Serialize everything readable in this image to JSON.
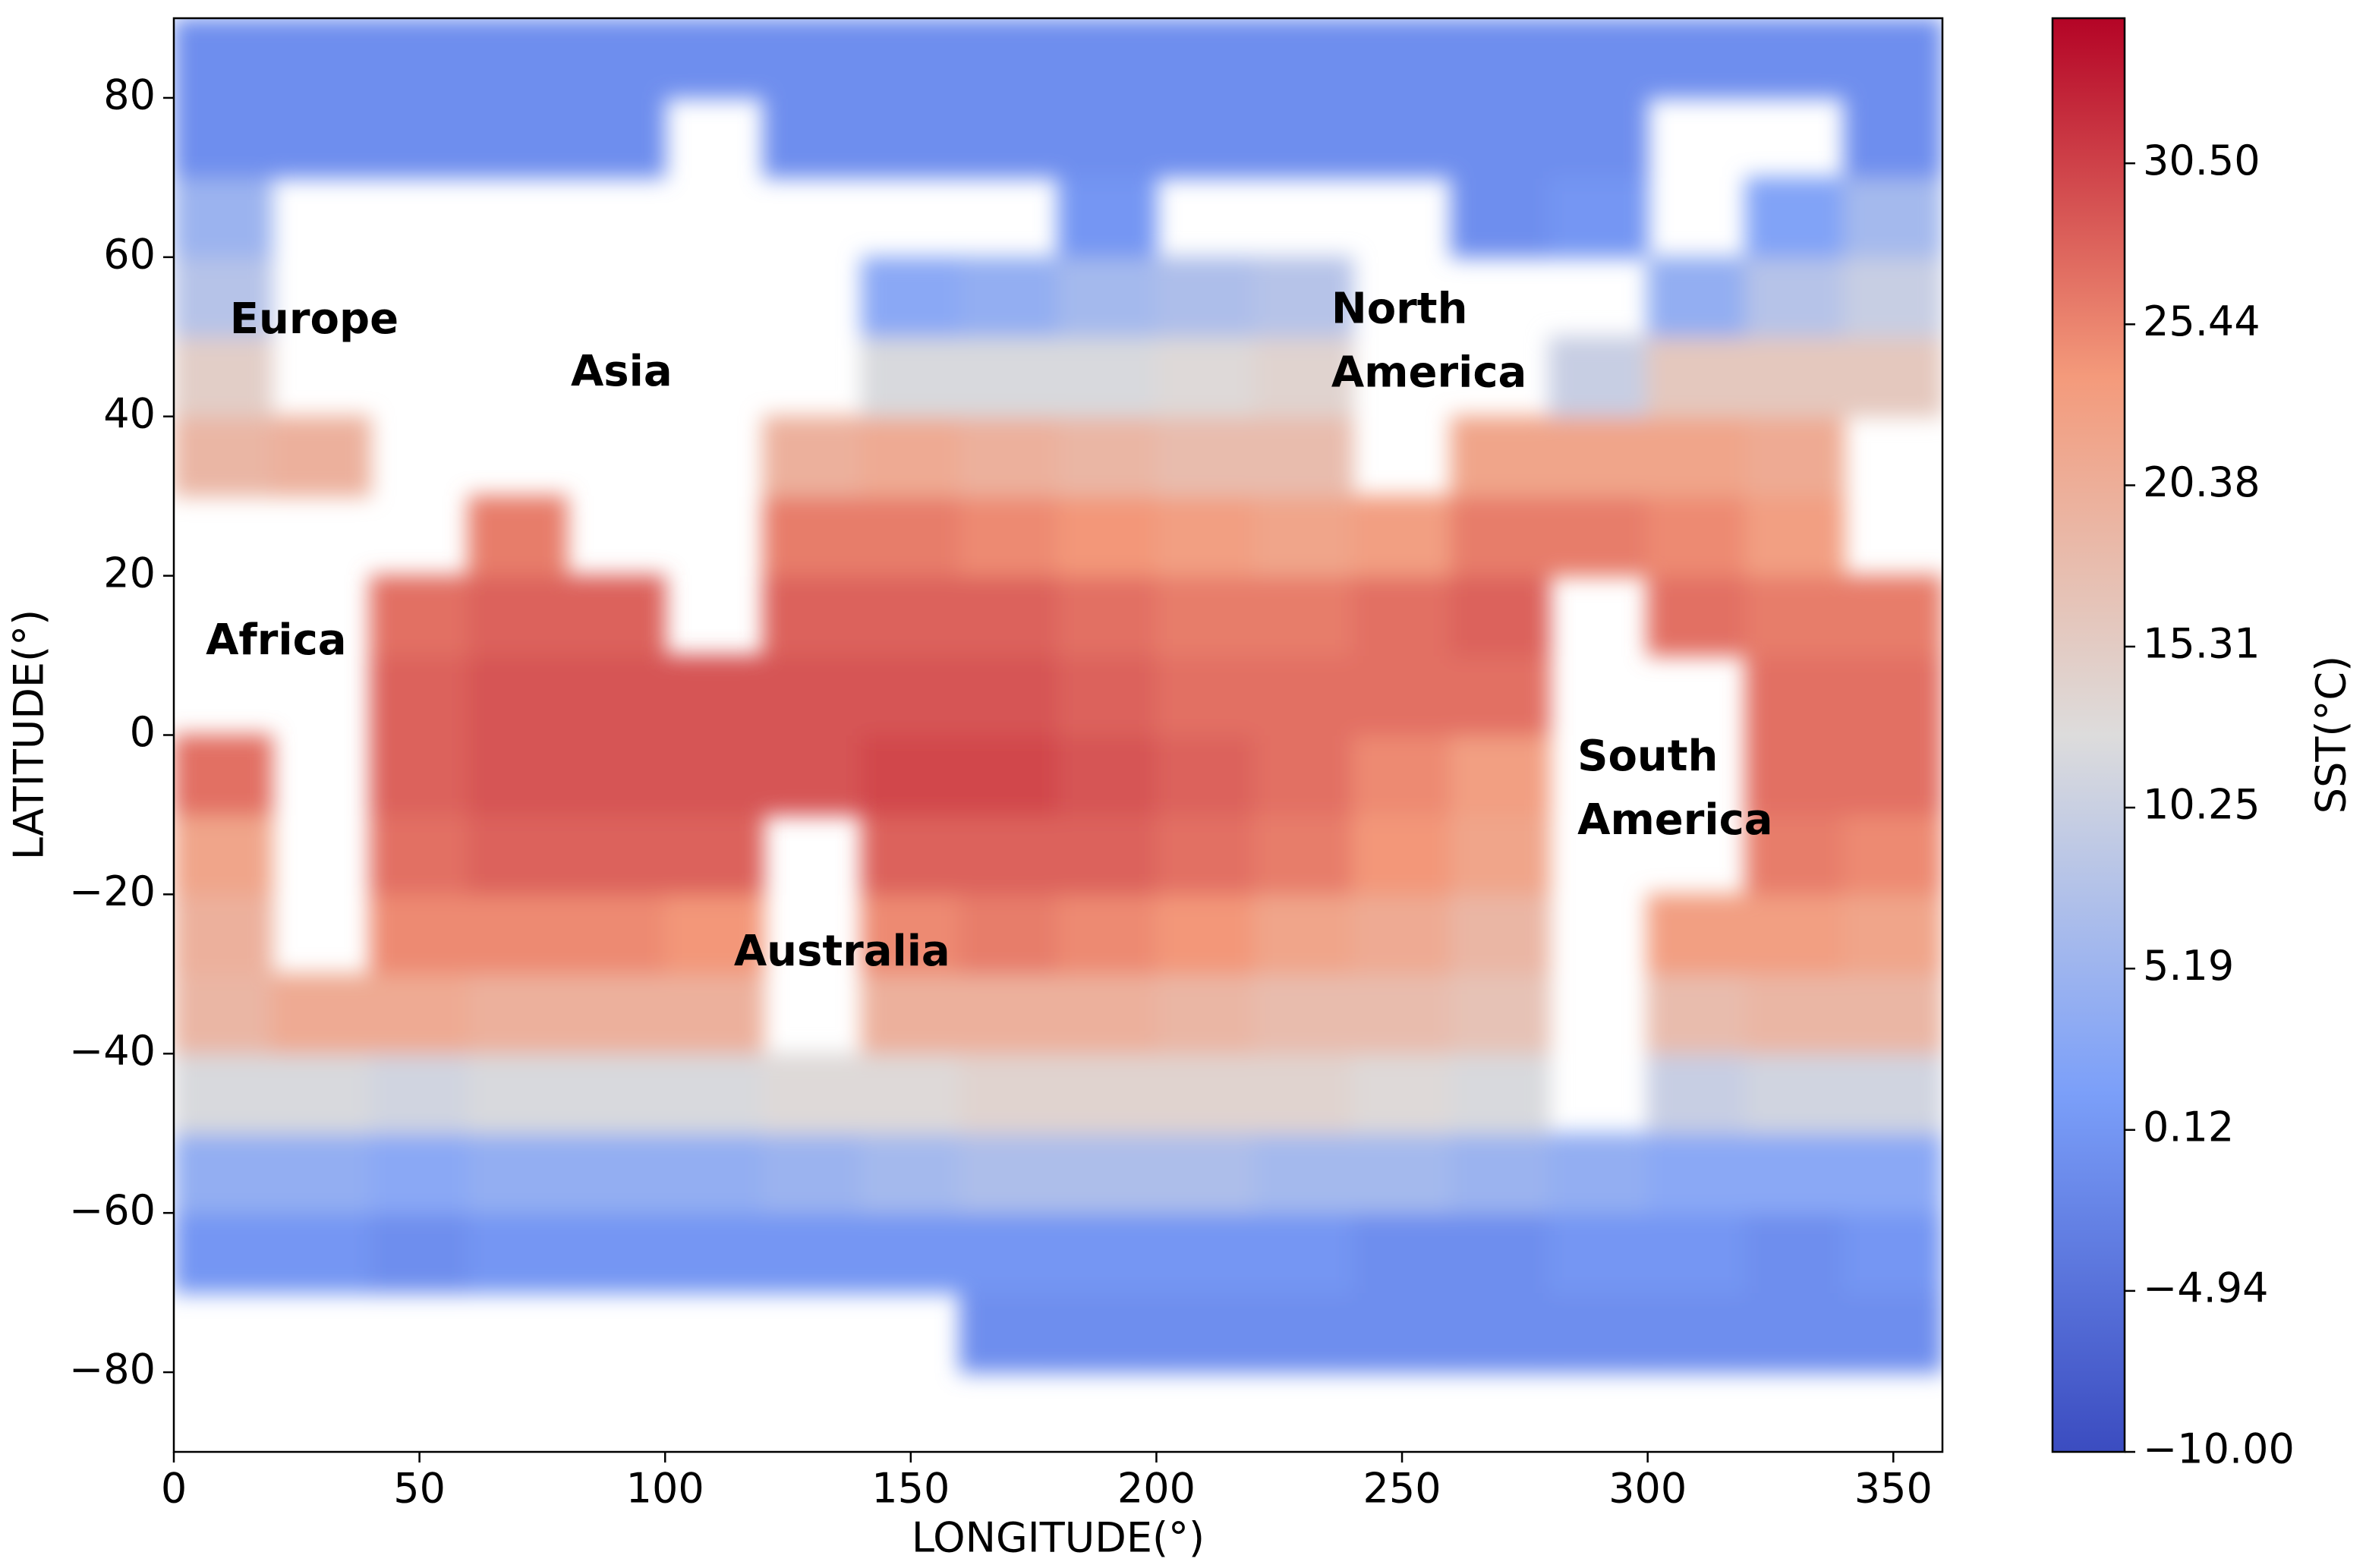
{
  "chart_data": {
    "type": "heatmap",
    "x_label": "LONGITUDE(°)",
    "y_label": "LATITUDE(°)",
    "colorbar_label": "SST(°C)",
    "xlim": [
      0,
      360
    ],
    "ylim": [
      -90,
      90
    ],
    "xticks": [
      0,
      50,
      100,
      150,
      200,
      250,
      300,
      350
    ],
    "yticks": [
      {
        "value": -80,
        "label": "−80"
      },
      {
        "value": -60,
        "label": "−60"
      },
      {
        "value": -40,
        "label": "−40"
      },
      {
        "value": -20,
        "label": "−20"
      },
      0,
      20,
      40,
      60,
      80
    ],
    "clim": [
      -10,
      35.06
    ],
    "cticks": [
      {
        "value": -10,
        "label": "−10.00"
      },
      {
        "value": -4.94,
        "label": "−4.94"
      },
      {
        "value": 0.12,
        "label": "0.12"
      },
      {
        "value": 5.19,
        "label": "5.19"
      },
      {
        "value": 10.25,
        "label": "10.25"
      },
      {
        "value": 15.31,
        "label": "15.31"
      },
      {
        "value": 20.38,
        "label": "20.38"
      },
      {
        "value": 25.44,
        "label": "25.44"
      },
      {
        "value": 30.5,
        "label": "30.50"
      }
    ],
    "colormap": [
      "#3b4cc0",
      "#7b9ff9",
      "#dddcdc",
      "#f49a7b",
      "#b40426"
    ],
    "x": [
      10,
      30,
      50,
      70,
      90,
      110,
      130,
      150,
      170,
      190,
      210,
      230,
      250,
      270,
      290,
      310,
      330,
      350
    ],
    "y": [
      -85,
      -75,
      -65,
      -55,
      -45,
      -35,
      -25,
      -15,
      -5,
      5,
      15,
      25,
      35,
      45,
      55,
      65,
      75,
      85
    ],
    "z": [
      [
        null,
        null,
        null,
        null,
        null,
        null,
        null,
        null,
        null,
        null,
        null,
        null,
        null,
        null,
        null,
        null,
        null,
        null
      ],
      [
        null,
        null,
        null,
        null,
        null,
        null,
        null,
        null,
        -1,
        -1,
        -1,
        -1,
        -1,
        -1,
        -1,
        -1,
        -1,
        -1
      ],
      [
        0,
        0,
        -1,
        0,
        0,
        0,
        0,
        0,
        0,
        0,
        0,
        0,
        -1,
        -1,
        0,
        0,
        -1,
        0
      ],
      [
        4,
        4,
        3,
        4,
        4,
        4,
        5,
        6,
        7,
        7,
        7,
        6,
        6,
        5,
        4,
        3,
        3,
        3
      ],
      [
        12,
        12,
        11,
        12,
        12,
        12,
        13,
        13,
        14,
        14,
        14,
        14,
        13,
        12,
        null,
        10,
        11,
        11
      ],
      [
        19,
        21,
        21,
        20,
        20,
        20,
        null,
        20,
        20,
        20,
        19,
        18,
        18,
        17,
        null,
        18,
        19,
        19
      ],
      [
        20,
        null,
        25,
        25,
        25,
        24,
        null,
        25,
        26,
        25,
        24,
        22,
        21,
        19,
        null,
        23,
        23,
        22
      ],
      [
        22,
        null,
        27,
        28,
        28,
        28,
        null,
        28,
        28,
        28,
        27,
        26,
        24,
        22,
        null,
        null,
        26,
        25
      ],
      [
        27,
        null,
        28,
        29,
        29,
        29,
        29,
        30,
        30,
        29,
        28,
        27,
        25,
        23,
        null,
        null,
        27,
        27
      ],
      [
        null,
        null,
        28,
        29,
        29,
        29,
        29,
        29,
        29,
        28,
        27,
        27,
        27,
        27,
        null,
        null,
        27,
        27
      ],
      [
        null,
        null,
        27,
        28,
        28,
        null,
        28,
        28,
        28,
        27,
        26,
        26,
        27,
        28,
        null,
        27,
        26,
        26
      ],
      [
        null,
        null,
        null,
        26,
        null,
        null,
        26,
        26,
        25,
        24,
        23,
        22,
        23,
        26,
        26,
        25,
        23,
        null
      ],
      [
        19,
        20,
        null,
        null,
        null,
        null,
        20,
        21,
        20,
        19,
        18,
        18,
        null,
        22,
        22,
        22,
        21,
        null
      ],
      [
        15,
        null,
        null,
        null,
        null,
        null,
        null,
        12,
        12,
        12,
        13,
        14,
        null,
        null,
        10,
        16,
        16,
        16
      ],
      [
        8,
        null,
        null,
        null,
        null,
        null,
        null,
        3,
        4,
        6,
        7,
        8,
        null,
        null,
        null,
        4,
        8,
        10
      ],
      [
        5,
        null,
        null,
        null,
        null,
        null,
        null,
        null,
        null,
        0,
        null,
        null,
        null,
        -1,
        0,
        null,
        2,
        6
      ],
      [
        -1,
        -1,
        -1,
        -1,
        -1,
        null,
        -1,
        -1,
        -1,
        -1,
        -1,
        -1,
        -1,
        -1,
        -1,
        null,
        null,
        -1
      ],
      [
        -1,
        -1,
        -1,
        -1,
        -1,
        -1,
        -1,
        -1,
        -1,
        -1,
        -1,
        -1,
        -1,
        -1,
        -1,
        -1,
        -1,
        -1
      ]
    ],
    "annotations": [
      {
        "text": [
          "Europe"
        ],
        "x": 11.4,
        "y": 51.9
      },
      {
        "text": [
          "Asia"
        ],
        "x": 80.8,
        "y": 45.3
      },
      {
        "text": [
          "Africa"
        ],
        "x": 6.5,
        "y": 11.6
      },
      {
        "text": [
          "North",
          "America"
        ],
        "x": 235.6,
        "y": 53.2
      },
      {
        "text": [
          "South",
          "America"
        ],
        "x": 285.7,
        "y": -3.0
      },
      {
        "text": [
          "Australia"
        ],
        "x": 114,
        "y": -27.5
      }
    ]
  }
}
